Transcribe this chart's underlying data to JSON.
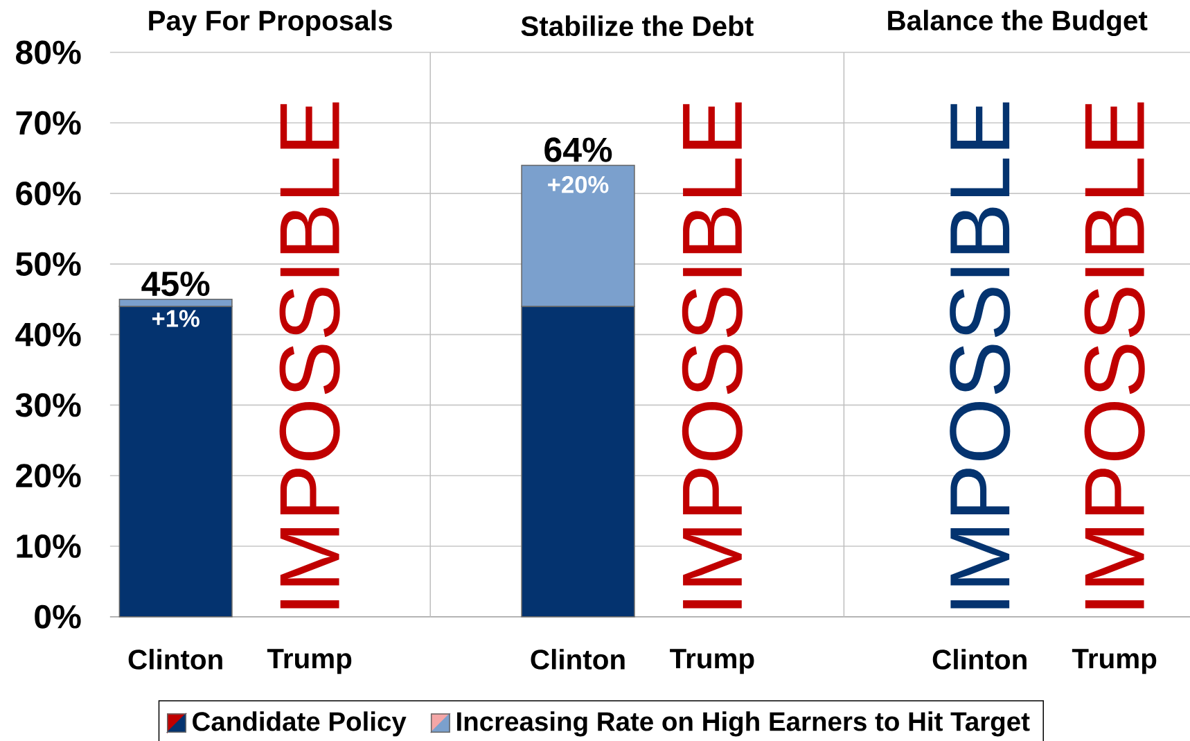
{
  "chart_data": [
    {
      "type": "bar",
      "stacked": true,
      "title": "Pay For Proposals",
      "categories": [
        "Clinton",
        "Trump"
      ],
      "series": [
        {
          "colors": [
            "#04336f",
            "#c00000"
          ],
          "values": [
            44,
            null
          ]
        },
        {
          "colors": [
            "#7ba0cd",
            "#f4a6a6"
          ],
          "values": [
            1,
            null
          ],
          "value_labels": [
            "+1%",
            null
          ]
        }
      ],
      "totals": [
        "45%",
        null
      ],
      "annotations": [
        "IMPOSSIBLE"
      ],
      "ylim": [
        0,
        80
      ],
      "yticks": [
        {
          "value": 0,
          "label": "0%"
        },
        {
          "value": 10,
          "label": "10%"
        },
        {
          "value": 20,
          "label": "20%"
        },
        {
          "value": 30,
          "label": "30%"
        },
        {
          "value": 40,
          "label": "40%"
        },
        {
          "value": 50,
          "label": "50%"
        },
        {
          "value": 60,
          "label": "60%"
        },
        {
          "value": 70,
          "label": "70%"
        },
        {
          "value": 80,
          "label": "80%"
        }
      ],
      "grid": "y"
    },
    {
      "type": "bar",
      "stacked": true,
      "title": "Stabilize the Debt",
      "categories": [
        "Clinton",
        "Trump"
      ],
      "series": [
        {
          "name": "Candidate Policy",
          "colors": [
            "#04336f",
            "#c00000"
          ],
          "values": [
            44,
            null
          ]
        },
        {
          "name": "Increasing Rate on High Earners to Hit Target",
          "colors": [
            "#7ba0cd",
            "#f4a6a6"
          ],
          "values": [
            20,
            null
          ],
          "value_labels": [
            "+20%",
            null
          ]
        }
      ],
      "totals": [
        "64%",
        null
      ],
      "annotations": [
        "IMPOSSIBLE"
      ],
      "legend": "bottom",
      "ylim": [
        0,
        80
      ],
      "yticks": [
        {
          "value": 0,
          "label": null
        },
        {
          "value": 10,
          "label": null
        },
        {
          "value": 20,
          "label": null
        },
        {
          "value": 30,
          "label": null
        },
        {
          "value": 40,
          "label": null
        },
        {
          "value": 50,
          "label": null
        },
        {
          "value": 60,
          "label": null
        },
        {
          "value": 70,
          "label": null
        },
        {
          "value": 80,
          "label": null
        }
      ],
      "grid": "y",
      "tick_labels": "x"
    },
    {
      "type": "bar",
      "stacked": true,
      "title": "Balance the Budget",
      "categories": [
        "Clinton",
        "Trump"
      ],
      "series": [
        {
          "colors": [
            "#04336f",
            "#c00000"
          ],
          "values": [
            null,
            null
          ]
        }
      ],
      "annotations": [
        "IMPOSSIBLE",
        "IMPOSSIBLE"
      ],
      "ylim": [
        0,
        80
      ],
      "yticks": [
        {
          "value": 0,
          "label": null
        },
        {
          "value": 10,
          "label": null
        },
        {
          "value": 20,
          "label": null
        },
        {
          "value": 30,
          "label": null
        },
        {
          "value": 40,
          "label": null
        },
        {
          "value": 50,
          "label": null
        },
        {
          "value": 60,
          "label": null
        },
        {
          "value": 70,
          "label": null
        },
        {
          "value": 80,
          "label": null
        }
      ],
      "grid": "y",
      "tick_labels": "x"
    }
  ]
}
